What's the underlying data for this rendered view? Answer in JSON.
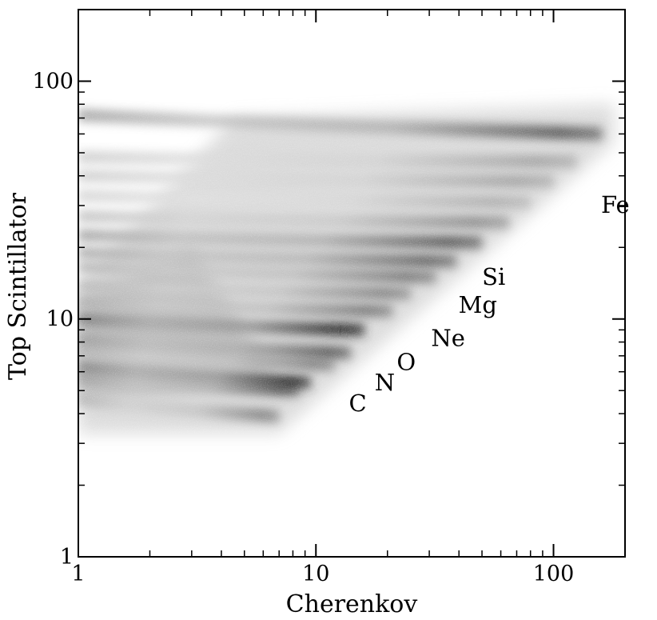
{
  "chart_data": {
    "type": "heatmap",
    "xlabel": "Cherenkov",
    "ylabel": "Top Scintillator",
    "xscale": "log",
    "yscale": "log",
    "xlim": [
      1,
      200
    ],
    "ylim": [
      1,
      200
    ],
    "x_ticks": [
      {
        "value": 1,
        "label": "1"
      },
      {
        "value": 10,
        "label": "10"
      },
      {
        "value": 100,
        "label": "100"
      }
    ],
    "y_ticks": [
      {
        "value": 1,
        "label": "1"
      },
      {
        "value": 10,
        "label": "10"
      },
      {
        "value": 100,
        "label": "100"
      }
    ],
    "grid": false,
    "colormap": "grayscale density",
    "colors": {
      "background": "#ffffff",
      "density_low": "#d8d8d8",
      "density_high": "#000000",
      "frame": "#000000"
    },
    "bands": [
      {
        "label": "C",
        "y_start": 4.6,
        "y_end": 3.9,
        "x_end": 7.0,
        "peak_intensity": 0.55
      },
      {
        "label": "",
        "y_start": 5.6,
        "y_end": 5.0,
        "x_end": 8.5,
        "peak_intensity": 0.7
      },
      {
        "label": "N",
        "y_start": 6.3,
        "y_end": 5.4,
        "x_end": 9.5,
        "peak_intensity": 0.95
      },
      {
        "label": "",
        "y_start": 7.3,
        "y_end": 6.4,
        "x_end": 12.0,
        "peak_intensity": 0.55
      },
      {
        "label": "O",
        "y_start": 8.2,
        "y_end": 7.2,
        "x_end": 14.0,
        "peak_intensity": 0.75
      },
      {
        "label": "",
        "y_start": 10.0,
        "y_end": 9.0,
        "x_end": 16.0,
        "peak_intensity": 1.0
      },
      {
        "label": "Ne",
        "y_start": 11.8,
        "y_end": 10.8,
        "x_end": 21.0,
        "peak_intensity": 0.6
      },
      {
        "label": "",
        "y_start": 13.8,
        "y_end": 12.8,
        "x_end": 25.0,
        "peak_intensity": 0.55
      },
      {
        "label": "Mg",
        "y_start": 16.5,
        "y_end": 15.0,
        "x_end": 32.0,
        "peak_intensity": 0.6
      },
      {
        "label": "",
        "y_start": 19.0,
        "y_end": 17.5,
        "x_end": 39.0,
        "peak_intensity": 0.7
      },
      {
        "label": "Si",
        "y_start": 22.5,
        "y_end": 21.0,
        "x_end": 50.0,
        "peak_intensity": 0.75
      },
      {
        "label": "",
        "y_start": 27.0,
        "y_end": 25.5,
        "x_end": 65.0,
        "peak_intensity": 0.5
      },
      {
        "label": "",
        "y_start": 33.0,
        "y_end": 31.0,
        "x_end": 80.0,
        "peak_intensity": 0.35
      },
      {
        "label": "",
        "y_start": 40.0,
        "y_end": 38.0,
        "x_end": 100.0,
        "peak_intensity": 0.4
      },
      {
        "label": "",
        "y_start": 48.0,
        "y_end": 46.0,
        "x_end": 125.0,
        "peak_intensity": 0.4
      },
      {
        "label": "Fe",
        "y_start": 72.0,
        "y_end": 60.0,
        "x_end": 160.0,
        "peak_intensity": 0.75
      }
    ],
    "annotations": [
      {
        "text": "C",
        "x": 15.0,
        "y": 4.1
      },
      {
        "text": "N",
        "x": 19.5,
        "y": 5.0
      },
      {
        "text": "O",
        "x": 24.0,
        "y": 6.1
      },
      {
        "text": "Ne",
        "x": 36.0,
        "y": 7.7
      },
      {
        "text": "Mg",
        "x": 48.0,
        "y": 10.6
      },
      {
        "text": "Si",
        "x": 56.0,
        "y": 13.9
      },
      {
        "text": "Fe",
        "x": 182.0,
        "y": 28.0
      }
    ]
  }
}
